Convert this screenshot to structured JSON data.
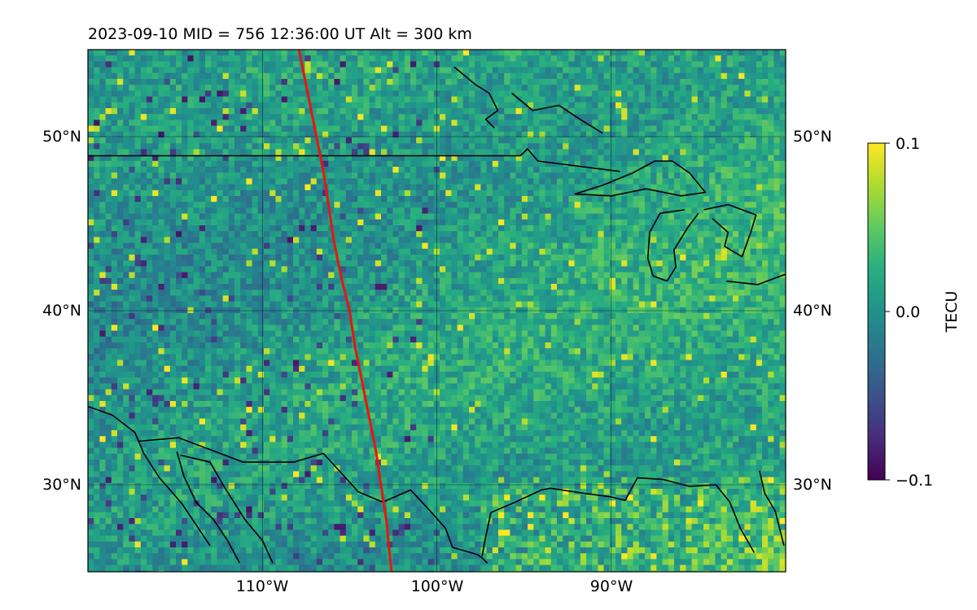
{
  "map": {
    "title": "2023-09-10  MID = 756    12:36:00  UT  Alt = 300 km",
    "lon_ticks": [
      "110°W",
      "100°W",
      "90°W"
    ],
    "lat_ticks_left": [
      "50°N",
      "40°N",
      "30°N"
    ],
    "lat_ticks_right": [
      "50°N",
      "40°N",
      "30°N"
    ],
    "extent": {
      "lon": [
        -120,
        -80
      ],
      "lat": [
        25,
        55
      ]
    },
    "grid": true,
    "colormap": "viridis",
    "feature_colors": {
      "coastlines_borders": "#000000",
      "track": "#e8160c"
    }
  },
  "colorbar": {
    "label": "TECU",
    "ticks": [
      "0.1",
      "0.0",
      "−0.1"
    ],
    "range": [
      -0.1,
      0.1
    ]
  },
  "track_path": [
    [
      -107.9,
      55.0
    ],
    [
      -107.4,
      52.5
    ],
    [
      -107.0,
      50.5
    ],
    [
      -106.5,
      48.0
    ],
    [
      -106.2,
      46.0
    ],
    [
      -105.9,
      44.0
    ],
    [
      -105.5,
      42.0
    ],
    [
      -105.0,
      40.0
    ],
    [
      -104.7,
      38.0
    ],
    [
      -104.3,
      36.0
    ],
    [
      -103.9,
      34.0
    ],
    [
      -103.5,
      32.0
    ],
    [
      -103.2,
      30.0
    ],
    [
      -102.9,
      28.0
    ],
    [
      -102.6,
      25.0
    ]
  ],
  "outlines": [
    {
      "name": "us-canada-border",
      "points": [
        [
          -120,
          48.9
        ],
        [
          -95.2,
          48.9
        ],
        [
          -94.8,
          49.3
        ],
        [
          -94.2,
          48.6
        ],
        [
          -89.5,
          48.0
        ]
      ]
    },
    {
      "name": "hudson-bay-shore",
      "points": [
        [
          -95.7,
          52.5
        ],
        [
          -94.5,
          51.5
        ],
        [
          -93.0,
          51.8
        ],
        [
          -91.8,
          51.0
        ],
        [
          -90.5,
          50.2
        ]
      ]
    },
    {
      "name": "lake-winnipeg",
      "points": [
        [
          -99.0,
          54.0
        ],
        [
          -97.8,
          53.0
        ],
        [
          -97.0,
          52.5
        ],
        [
          -96.5,
          51.5
        ],
        [
          -97.2,
          51.0
        ],
        [
          -96.7,
          50.5
        ]
      ]
    },
    {
      "name": "lake-superior",
      "points": [
        [
          -92.1,
          46.7
        ],
        [
          -90.5,
          47.2
        ],
        [
          -88.8,
          47.9
        ],
        [
          -87.5,
          48.6
        ],
        [
          -86.5,
          48.6
        ],
        [
          -85.5,
          47.9
        ],
        [
          -84.6,
          46.8
        ],
        [
          -86.0,
          46.6
        ],
        [
          -88.0,
          47.0
        ],
        [
          -90.0,
          46.6
        ],
        [
          -92.1,
          46.7
        ]
      ]
    },
    {
      "name": "lake-michigan",
      "points": [
        [
          -85.8,
          45.8
        ],
        [
          -87.2,
          45.6
        ],
        [
          -87.8,
          44.5
        ],
        [
          -87.9,
          43.0
        ],
        [
          -87.6,
          42.0
        ],
        [
          -86.8,
          41.7
        ],
        [
          -86.3,
          42.5
        ],
        [
          -86.4,
          43.5
        ],
        [
          -85.6,
          44.8
        ],
        [
          -85.0,
          45.6
        ]
      ]
    },
    {
      "name": "lake-huron",
      "points": [
        [
          -84.7,
          45.8
        ],
        [
          -83.3,
          46.1
        ],
        [
          -81.7,
          45.5
        ],
        [
          -82.0,
          44.5
        ],
        [
          -82.5,
          43.1
        ],
        [
          -83.5,
          43.7
        ],
        [
          -83.3,
          44.5
        ],
        [
          -84.2,
          45.3
        ]
      ]
    },
    {
      "name": "lake-erie",
      "points": [
        [
          -83.4,
          41.7
        ],
        [
          -81.6,
          41.5
        ],
        [
          -80.0,
          42.1
        ],
        [
          -79.0,
          42.8
        ]
      ]
    },
    {
      "name": "us-mexico-border",
      "points": [
        [
          -117.1,
          32.5
        ],
        [
          -114.8,
          32.7
        ],
        [
          -111.1,
          31.3
        ],
        [
          -108.2,
          31.3
        ],
        [
          -106.5,
          31.8
        ],
        [
          -104.5,
          29.6
        ],
        [
          -103.1,
          29.0
        ],
        [
          -101.5,
          29.7
        ],
        [
          -100.3,
          28.4
        ],
        [
          -99.5,
          27.5
        ],
        [
          -99.1,
          26.4
        ],
        [
          -97.7,
          26.0
        ],
        [
          -97.4,
          25.8
        ],
        [
          -97.1,
          25.5
        ]
      ]
    },
    {
      "name": "gulf-coast",
      "points": [
        [
          -97.4,
          25.9
        ],
        [
          -97.2,
          27.0
        ],
        [
          -96.9,
          28.4
        ],
        [
          -95.5,
          29.0
        ],
        [
          -94.0,
          29.7
        ],
        [
          -93.5,
          29.8
        ],
        [
          -91.5,
          29.5
        ],
        [
          -90.0,
          29.3
        ],
        [
          -89.2,
          29.1
        ],
        [
          -88.5,
          30.4
        ],
        [
          -87.0,
          30.3
        ],
        [
          -85.5,
          29.9
        ],
        [
          -84.0,
          30.0
        ],
        [
          -83.2,
          29.0
        ],
        [
          -82.6,
          27.5
        ],
        [
          -81.8,
          26.1
        ]
      ]
    },
    {
      "name": "florida-east-coast",
      "points": [
        [
          -81.5,
          30.8
        ],
        [
          -81.2,
          29.5
        ],
        [
          -80.6,
          28.5
        ],
        [
          -80.1,
          26.5
        ]
      ]
    },
    {
      "name": "pacific-coast",
      "points": [
        [
          -120.0,
          34.5
        ],
        [
          -118.6,
          34.0
        ],
        [
          -117.3,
          33.0
        ],
        [
          -116.8,
          31.8
        ],
        [
          -115.9,
          30.4
        ],
        [
          -114.6,
          28.9
        ],
        [
          -114.0,
          28.0
        ],
        [
          -113.0,
          26.5
        ]
      ]
    },
    {
      "name": "gulf-of-california-west",
      "points": [
        [
          -114.9,
          31.9
        ],
        [
          -114.5,
          30.5
        ],
        [
          -113.8,
          29.0
        ],
        [
          -112.8,
          28.0
        ],
        [
          -112.0,
          26.8
        ],
        [
          -111.3,
          25.5
        ]
      ]
    },
    {
      "name": "gulf-of-california-east",
      "points": [
        [
          -114.7,
          31.7
        ],
        [
          -113.0,
          31.3
        ],
        [
          -112.2,
          29.9
        ],
        [
          -111.0,
          28.0
        ],
        [
          -110.0,
          26.8
        ],
        [
          -109.4,
          25.5
        ]
      ]
    }
  ]
}
